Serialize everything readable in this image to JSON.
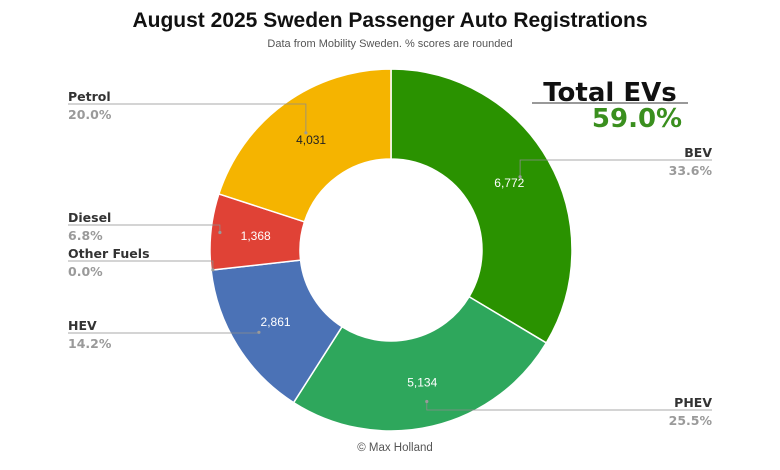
{
  "chart_data": {
    "type": "pie",
    "variant": "donut",
    "title": "August 2025 Sweden Passenger Auto Registrations",
    "subtitle": "Data from Mobility Sweden. % scores are rounded",
    "slices": [
      {
        "name": "BEV",
        "value": 6772,
        "value_label": "6,772",
        "percent_label": "33.6%",
        "color": "#2a9200",
        "label_color": "#ffffff"
      },
      {
        "name": "PHEV",
        "value": 5134,
        "value_label": "5,134",
        "percent_label": "25.5%",
        "color": "#2ea75c",
        "label_color": "#ffffff"
      },
      {
        "name": "HEV",
        "value": 2861,
        "value_label": "2,861",
        "percent_label": "14.2%",
        "color": "#4b72b6",
        "label_color": "#ffffff"
      },
      {
        "name": "Other Fuels",
        "value": 0,
        "value_label": "",
        "percent_label": "0.0%",
        "color": "#9e9e9e",
        "label_color": "#ffffff"
      },
      {
        "name": "Diesel",
        "value": 1368,
        "value_label": "1,368",
        "percent_label": "6.8%",
        "color": "#e04236",
        "label_color": "#ffffff"
      },
      {
        "name": "Petrol",
        "value": 4031,
        "value_label": "4,031",
        "percent_label": "20.0%",
        "color": "#f5b400",
        "label_color": "#222222"
      }
    ],
    "callout": {
      "title": "Total EVs",
      "value": "59.0%",
      "value_color": "#3a8f1e"
    },
    "credit": "© Max Holland"
  }
}
